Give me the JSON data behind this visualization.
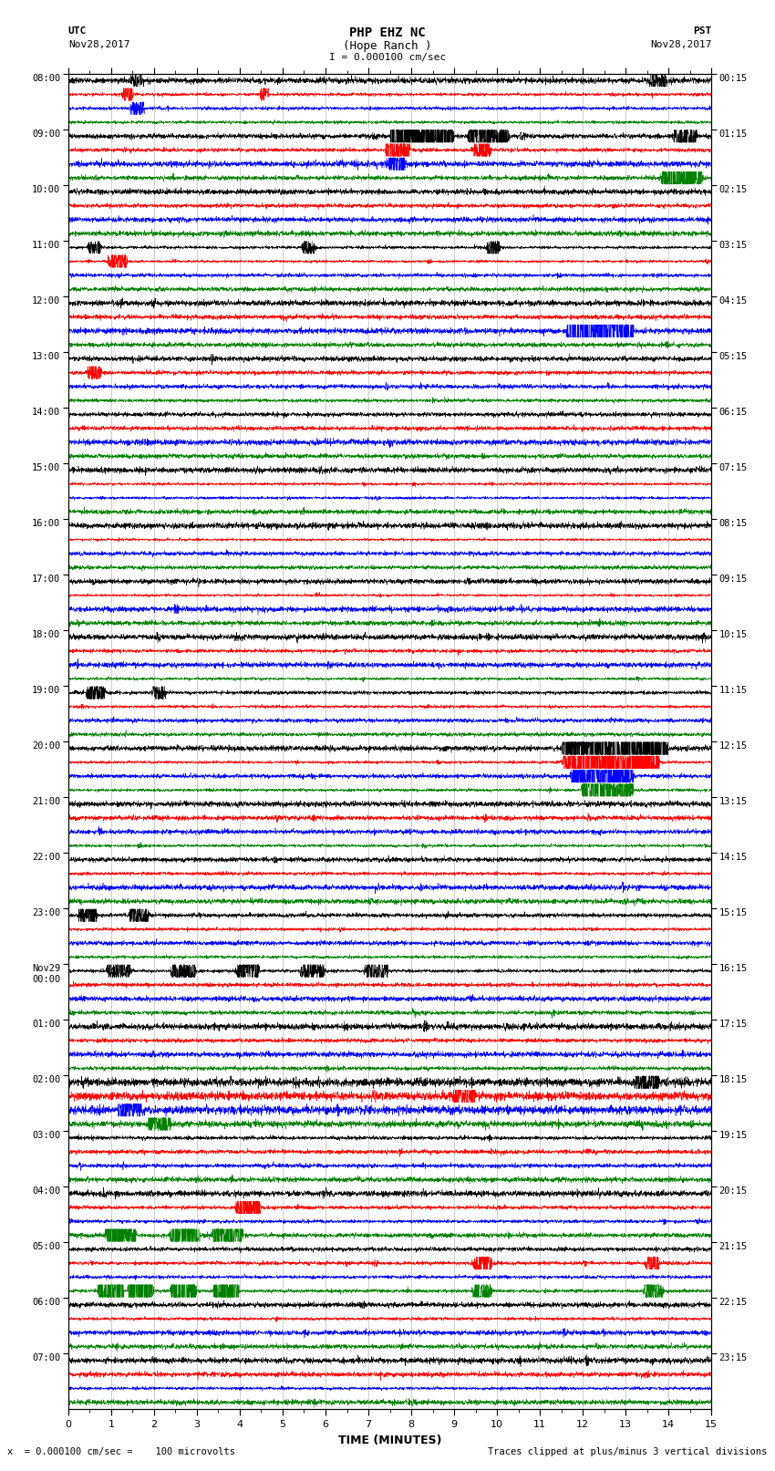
{
  "title_line1": "PHP EHZ NC",
  "title_line2": "(Hope Ranch )",
  "title_line3": "I = 0.000100 cm/sec",
  "utc_label_top": "UTC",
  "utc_date": "Nov28,2017",
  "pst_label_top": "PST",
  "pst_date": "Nov28,2017",
  "utc_labels": [
    "08:00",
    "09:00",
    "10:00",
    "11:00",
    "12:00",
    "13:00",
    "14:00",
    "15:00",
    "16:00",
    "17:00",
    "18:00",
    "19:00",
    "20:00",
    "21:00",
    "22:00",
    "23:00",
    "Nov29\n00:00",
    "01:00",
    "02:00",
    "03:00",
    "04:00",
    "05:00",
    "06:00",
    "07:00"
  ],
  "pst_labels": [
    "00:15",
    "01:15",
    "02:15",
    "03:15",
    "04:15",
    "05:15",
    "06:15",
    "07:15",
    "08:15",
    "09:15",
    "10:15",
    "11:15",
    "12:15",
    "13:15",
    "14:15",
    "15:15",
    "16:15",
    "17:15",
    "18:15",
    "19:15",
    "20:15",
    "21:15",
    "22:15",
    "23:15"
  ],
  "trace_colors": [
    "black",
    "red",
    "blue",
    "green"
  ],
  "xlabel": "TIME (MINUTES)",
  "xlim": [
    0,
    15
  ],
  "xticks": [
    0,
    1,
    2,
    3,
    4,
    5,
    6,
    7,
    8,
    9,
    10,
    11,
    12,
    13,
    14,
    15
  ],
  "bottom_left_note": "x  = 0.000100 cm/sec =    100 microvolts",
  "bottom_right_note": "Traces clipped at plus/minus 3 vertical divisions",
  "n_hours": 24,
  "traces_per_hour": 4,
  "bg_color": "white",
  "figsize": [
    8.5,
    16.13
  ]
}
